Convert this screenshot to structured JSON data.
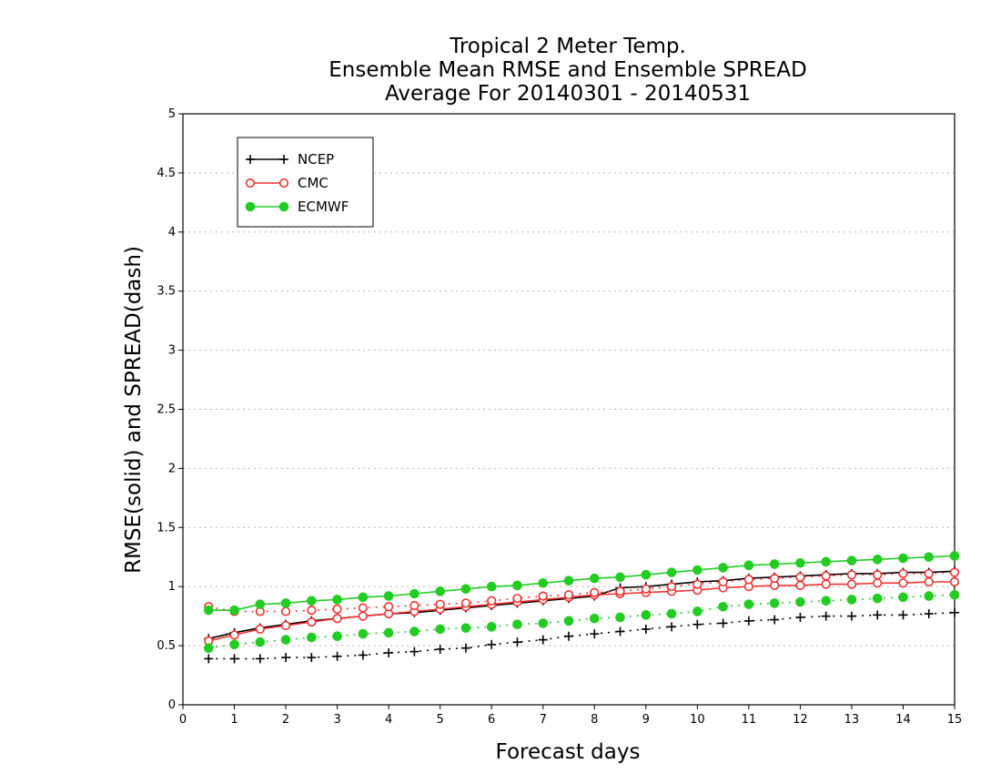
{
  "chart_data": {
    "type": "line",
    "title": [
      "Tropical 2 Meter Temp.",
      "Ensemble Mean RMSE and Ensemble SPREAD",
      "Average For 20140301 - 20140531"
    ],
    "xlabel": "Forecast days",
    "ylabel": "RMSE(solid) and SPREAD(dash)",
    "xlim": [
      0,
      15
    ],
    "ylim": [
      0,
      5
    ],
    "xticks": [
      "0",
      "1",
      "2",
      "3",
      "4",
      "5",
      "6",
      "7",
      "8",
      "9",
      "10",
      "11",
      "12",
      "13",
      "14",
      "15"
    ],
    "yticks": [
      "0",
      "0.5",
      "1",
      "1.5",
      "2",
      "2.5",
      "3",
      "3.5",
      "4",
      "4.5",
      "5"
    ],
    "grid": "horizontal dotted",
    "legend_position": "top-left",
    "legend": [
      "NCEP",
      "CMC",
      "ECMWF"
    ],
    "x": [
      0.5,
      1,
      1.5,
      2,
      2.5,
      3,
      3.5,
      4,
      4.5,
      5,
      5.5,
      6,
      6.5,
      7,
      7.5,
      8,
      8.5,
      9,
      9.5,
      10,
      10.5,
      11,
      11.5,
      12,
      12.5,
      13,
      13.5,
      14,
      14.5,
      15
    ],
    "series": [
      {
        "name": "NCEP",
        "metric": "RMSE",
        "style": "solid",
        "color": "#000000",
        "marker": "plus",
        "values": [
          0.56,
          0.61,
          0.65,
          0.68,
          0.71,
          0.73,
          0.75,
          0.77,
          0.78,
          0.8,
          0.82,
          0.84,
          0.86,
          0.88,
          0.9,
          0.92,
          0.99,
          1.0,
          1.02,
          1.04,
          1.05,
          1.07,
          1.08,
          1.09,
          1.1,
          1.11,
          1.11,
          1.12,
          1.12,
          1.13
        ]
      },
      {
        "name": "NCEP",
        "metric": "SPREAD",
        "style": "dash",
        "color": "#000000",
        "marker": "plus",
        "values": [
          0.39,
          0.39,
          0.39,
          0.4,
          0.4,
          0.41,
          0.42,
          0.44,
          0.45,
          0.47,
          0.48,
          0.51,
          0.53,
          0.55,
          0.58,
          0.6,
          0.62,
          0.64,
          0.66,
          0.68,
          0.69,
          0.71,
          0.72,
          0.74,
          0.75,
          0.75,
          0.76,
          0.76,
          0.77,
          0.78
        ]
      },
      {
        "name": "CMC",
        "metric": "RMSE",
        "style": "solid",
        "color": "#ee3333",
        "marker": "open-circle",
        "values": [
          0.54,
          0.59,
          0.64,
          0.67,
          0.7,
          0.73,
          0.75,
          0.77,
          0.79,
          0.81,
          0.83,
          0.85,
          0.87,
          0.89,
          0.91,
          0.93,
          0.94,
          0.95,
          0.96,
          0.97,
          0.99,
          1.0,
          1.01,
          1.01,
          1.02,
          1.02,
          1.03,
          1.03,
          1.04,
          1.04
        ]
      },
      {
        "name": "CMC",
        "metric": "SPREAD",
        "style": "dash",
        "color": "#ee3333",
        "marker": "open-circle",
        "values": [
          0.83,
          0.79,
          0.79,
          0.79,
          0.8,
          0.81,
          0.82,
          0.83,
          0.84,
          0.85,
          0.86,
          0.88,
          0.9,
          0.92,
          0.93,
          0.95,
          0.96,
          0.98,
          1.0,
          1.02,
          1.04,
          1.06,
          1.07,
          1.08,
          1.09,
          1.1,
          1.1,
          1.11,
          1.11,
          1.12
        ]
      },
      {
        "name": "ECMWF",
        "metric": "RMSE",
        "style": "solid",
        "color": "#22cc22",
        "marker": "filled-circle",
        "values": [
          0.8,
          0.8,
          0.85,
          0.86,
          0.88,
          0.89,
          0.91,
          0.92,
          0.94,
          0.96,
          0.98,
          1.0,
          1.01,
          1.03,
          1.05,
          1.07,
          1.08,
          1.1,
          1.12,
          1.14,
          1.16,
          1.18,
          1.19,
          1.2,
          1.21,
          1.22,
          1.23,
          1.24,
          1.25,
          1.26
        ]
      },
      {
        "name": "ECMWF",
        "metric": "SPREAD",
        "style": "dash",
        "color": "#22cc22",
        "marker": "filled-circle",
        "values": [
          0.48,
          0.51,
          0.53,
          0.55,
          0.57,
          0.58,
          0.6,
          0.61,
          0.62,
          0.64,
          0.65,
          0.66,
          0.68,
          0.69,
          0.71,
          0.73,
          0.74,
          0.76,
          0.77,
          0.79,
          0.83,
          0.85,
          0.86,
          0.87,
          0.88,
          0.89,
          0.9,
          0.91,
          0.92,
          0.93
        ]
      }
    ]
  }
}
